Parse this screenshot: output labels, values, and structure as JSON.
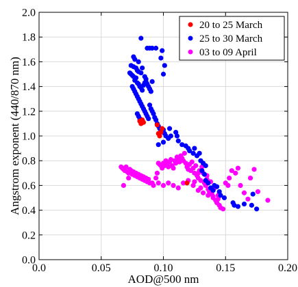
{
  "chart_data": {
    "type": "scatter",
    "title": "",
    "xlabel": "AOD@500 nm",
    "ylabel": "Angstrom exponent (440/870 nm)",
    "xlim": [
      0.0,
      0.2
    ],
    "ylim": [
      0.0,
      2.0
    ],
    "x_ticks": [
      "0.0",
      "0.05",
      "0.10",
      "0.15",
      "0.20"
    ],
    "y_ticks": [
      "0.0",
      "0.2",
      "0.4",
      "0.6",
      "0.8",
      "1.0",
      "1.2",
      "1.4",
      "1.6",
      "1.8",
      "2.0"
    ],
    "grid": true,
    "legend_position": "top-right",
    "series": [
      {
        "name": "20 to 25 March",
        "color": "#ff0000",
        "points": [
          [
            0.081,
            1.12
          ],
          [
            0.082,
            1.1
          ],
          [
            0.083,
            1.13
          ],
          [
            0.084,
            1.11
          ],
          [
            0.095,
            1.09
          ],
          [
            0.096,
            1.02
          ],
          [
            0.097,
            1.0
          ],
          [
            0.098,
            1.03
          ],
          [
            0.099,
            1.06
          ],
          [
            0.119,
            0.62
          ]
        ]
      },
      {
        "name": "25 to 30 March",
        "color": "#0000ff",
        "points": [
          [
            0.082,
            1.79
          ],
          [
            0.087,
            1.71
          ],
          [
            0.089,
            1.71
          ],
          [
            0.091,
            1.71
          ],
          [
            0.094,
            1.71
          ],
          [
            0.099,
            1.69
          ],
          [
            0.098,
            1.63
          ],
          [
            0.1,
            1.5
          ],
          [
            0.101,
            1.57
          ],
          [
            0.076,
            1.64
          ],
          [
            0.077,
            1.62
          ],
          [
            0.08,
            1.6
          ],
          [
            0.074,
            1.57
          ],
          [
            0.076,
            1.56
          ],
          [
            0.078,
            1.55
          ],
          [
            0.079,
            1.53
          ],
          [
            0.08,
            1.52
          ],
          [
            0.082,
            1.51
          ],
          [
            0.083,
            1.55
          ],
          [
            0.085,
            1.48
          ],
          [
            0.086,
            1.46
          ],
          [
            0.073,
            1.51
          ],
          [
            0.074,
            1.5
          ],
          [
            0.075,
            1.49
          ],
          [
            0.076,
            1.48
          ],
          [
            0.077,
            1.45
          ],
          [
            0.078,
            1.47
          ],
          [
            0.079,
            1.43
          ],
          [
            0.08,
            1.42
          ],
          [
            0.081,
            1.4
          ],
          [
            0.082,
            1.39
          ],
          [
            0.083,
            1.37
          ],
          [
            0.084,
            1.41
          ],
          [
            0.085,
            1.43
          ],
          [
            0.086,
            1.44
          ],
          [
            0.087,
            1.42
          ],
          [
            0.088,
            1.4
          ],
          [
            0.089,
            1.38
          ],
          [
            0.09,
            1.36
          ],
          [
            0.091,
            1.44
          ],
          [
            0.075,
            1.4
          ],
          [
            0.076,
            1.38
          ],
          [
            0.077,
            1.36
          ],
          [
            0.078,
            1.34
          ],
          [
            0.079,
            1.32
          ],
          [
            0.08,
            1.3
          ],
          [
            0.081,
            1.28
          ],
          [
            0.082,
            1.26
          ],
          [
            0.083,
            1.24
          ],
          [
            0.084,
            1.22
          ],
          [
            0.085,
            1.2
          ],
          [
            0.086,
            1.18
          ],
          [
            0.087,
            1.16
          ],
          [
            0.088,
            1.14
          ],
          [
            0.089,
            1.25
          ],
          [
            0.09,
            1.22
          ],
          [
            0.091,
            1.2
          ],
          [
            0.092,
            1.18
          ],
          [
            0.093,
            1.15
          ],
          [
            0.094,
            1.13
          ],
          [
            0.079,
            1.18
          ],
          [
            0.08,
            1.16
          ],
          [
            0.081,
            1.14
          ],
          [
            0.095,
            1.1
          ],
          [
            0.096,
            1.08
          ],
          [
            0.097,
            1.06
          ],
          [
            0.098,
            1.04
          ],
          [
            0.1,
            1.05
          ],
          [
            0.101,
            1.02
          ],
          [
            0.102,
            1.0
          ],
          [
            0.104,
            0.98
          ],
          [
            0.105,
            1.06
          ],
          [
            0.106,
            1.0
          ],
          [
            0.1,
            0.95
          ],
          [
            0.096,
            0.93
          ],
          [
            0.11,
            1.03
          ],
          [
            0.111,
            1.0
          ],
          [
            0.112,
            0.96
          ],
          [
            0.115,
            0.93
          ],
          [
            0.118,
            0.92
          ],
          [
            0.12,
            0.9
          ],
          [
            0.121,
            0.88
          ],
          [
            0.124,
            0.86
          ],
          [
            0.125,
            0.9
          ],
          [
            0.127,
            0.84
          ],
          [
            0.129,
            0.86
          ],
          [
            0.13,
            0.8
          ],
          [
            0.132,
            0.78
          ],
          [
            0.134,
            0.76
          ],
          [
            0.131,
            0.72
          ],
          [
            0.133,
            0.69
          ],
          [
            0.134,
            0.64
          ],
          [
            0.136,
            0.62
          ],
          [
            0.138,
            0.58
          ],
          [
            0.14,
            0.56
          ],
          [
            0.141,
            0.6
          ],
          [
            0.143,
            0.59
          ],
          [
            0.145,
            0.55
          ],
          [
            0.146,
            0.52
          ],
          [
            0.149,
            0.5
          ],
          [
            0.156,
            0.46
          ],
          [
            0.157,
            0.44
          ],
          [
            0.16,
            0.43
          ],
          [
            0.165,
            0.45
          ],
          [
            0.171,
            0.44
          ],
          [
            0.175,
            0.41
          ],
          [
            0.172,
            0.53
          ]
        ]
      },
      {
        "name": "03 to 09 April",
        "color": "#ff00ff",
        "points": [
          [
            0.066,
            0.75
          ],
          [
            0.067,
            0.74
          ],
          [
            0.068,
            0.73
          ],
          [
            0.069,
            0.72
          ],
          [
            0.07,
            0.75
          ],
          [
            0.071,
            0.71
          ],
          [
            0.072,
            0.7
          ],
          [
            0.073,
            0.73
          ],
          [
            0.074,
            0.72
          ],
          [
            0.075,
            0.69
          ],
          [
            0.076,
            0.71
          ],
          [
            0.077,
            0.68
          ],
          [
            0.078,
            0.7
          ],
          [
            0.079,
            0.67
          ],
          [
            0.08,
            0.69
          ],
          [
            0.081,
            0.66
          ],
          [
            0.082,
            0.68
          ],
          [
            0.083,
            0.65
          ],
          [
            0.084,
            0.67
          ],
          [
            0.085,
            0.64
          ],
          [
            0.086,
            0.66
          ],
          [
            0.087,
            0.63
          ],
          [
            0.088,
            0.65
          ],
          [
            0.089,
            0.62
          ],
          [
            0.068,
            0.6
          ],
          [
            0.072,
            0.66
          ],
          [
            0.091,
            0.62
          ],
          [
            0.092,
            0.6
          ],
          [
            0.094,
            0.66
          ],
          [
            0.095,
            0.7
          ],
          [
            0.096,
            0.78
          ],
          [
            0.097,
            0.77
          ],
          [
            0.098,
            0.76
          ],
          [
            0.099,
            0.74
          ],
          [
            0.1,
            0.78
          ],
          [
            0.101,
            0.76
          ],
          [
            0.102,
            0.8
          ],
          [
            0.103,
            0.77
          ],
          [
            0.104,
            0.75
          ],
          [
            0.105,
            0.79
          ],
          [
            0.106,
            0.81
          ],
          [
            0.107,
            0.76
          ],
          [
            0.108,
            0.74
          ],
          [
            0.109,
            0.8
          ],
          [
            0.11,
            0.78
          ],
          [
            0.111,
            0.83
          ],
          [
            0.112,
            0.81
          ],
          [
            0.113,
            0.79
          ],
          [
            0.114,
            0.84
          ],
          [
            0.115,
            0.82
          ],
          [
            0.116,
            0.8
          ],
          [
            0.117,
            0.86
          ],
          [
            0.118,
            0.78
          ],
          [
            0.119,
            0.75
          ],
          [
            0.12,
            0.73
          ],
          [
            0.121,
            0.77
          ],
          [
            0.122,
            0.72
          ],
          [
            0.123,
            0.79
          ],
          [
            0.124,
            0.74
          ],
          [
            0.125,
            0.7
          ],
          [
            0.126,
            0.76
          ],
          [
            0.127,
            0.68
          ],
          [
            0.128,
            0.66
          ],
          [
            0.129,
            0.72
          ],
          [
            0.13,
            0.64
          ],
          [
            0.131,
            0.75
          ],
          [
            0.132,
            0.7
          ],
          [
            0.133,
            0.62
          ],
          [
            0.134,
            0.6
          ],
          [
            0.135,
            0.68
          ],
          [
            0.136,
            0.57
          ],
          [
            0.137,
            0.55
          ],
          [
            0.138,
            0.63
          ],
          [
            0.139,
            0.53
          ],
          [
            0.14,
            0.5
          ],
          [
            0.141,
            0.58
          ],
          [
            0.142,
            0.48
          ],
          [
            0.143,
            0.46
          ],
          [
            0.144,
            0.52
          ],
          [
            0.145,
            0.44
          ],
          [
            0.146,
            0.42
          ],
          [
            0.148,
            0.41
          ],
          [
            0.15,
            0.62
          ],
          [
            0.152,
            0.6
          ],
          [
            0.153,
            0.66
          ],
          [
            0.155,
            0.72
          ],
          [
            0.158,
            0.7
          ],
          [
            0.16,
            0.74
          ],
          [
            0.162,
            0.6
          ],
          [
            0.165,
            0.54
          ],
          [
            0.168,
            0.49
          ],
          [
            0.17,
            0.66
          ],
          [
            0.173,
            0.73
          ],
          [
            0.176,
            0.55
          ],
          [
            0.184,
            0.48
          ],
          [
            0.096,
            0.62
          ],
          [
            0.1,
            0.6
          ],
          [
            0.104,
            0.62
          ],
          [
            0.108,
            0.6
          ],
          [
            0.112,
            0.58
          ],
          [
            0.116,
            0.62
          ],
          [
            0.12,
            0.64
          ],
          [
            0.124,
            0.6
          ],
          [
            0.128,
            0.56
          ],
          [
            0.132,
            0.54
          ],
          [
            0.136,
            0.52
          ],
          [
            0.14,
            0.51
          ],
          [
            0.144,
            0.49
          ],
          [
            0.125,
            0.63
          ],
          [
            0.13,
            0.58
          ],
          [
            0.135,
            0.65
          ],
          [
            0.128,
            0.7
          ]
        ]
      }
    ]
  }
}
